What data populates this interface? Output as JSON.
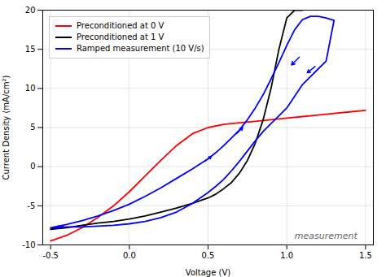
{
  "chart_data": {
    "type": "line",
    "xlabel": "Voltage (V)",
    "ylabel": "Current Density (mA/cm²)",
    "xlim": [
      -0.55,
      1.55
    ],
    "ylim": [
      -10,
      20
    ],
    "xticks": [
      -0.5,
      {
        "value": 0.0,
        "label": "0.0"
      },
      0.5,
      {
        "value": 1.0,
        "label": "1.0"
      },
      1.5
    ],
    "yticks": [
      -10,
      -5,
      0,
      5,
      10,
      15,
      20
    ],
    "grid": true,
    "legend": "upper left",
    "annotations": [
      {
        "text": "measurement",
        "x": 1.05,
        "y": -9.2
      }
    ],
    "series": [
      {
        "name": "Preconditioned at 0 V",
        "color": "red",
        "x": [
          -0.5,
          -0.4,
          -0.3,
          -0.2,
          -0.1,
          0.0,
          0.1,
          0.2,
          0.3,
          0.4,
          0.5,
          0.6,
          0.7,
          0.8,
          0.9,
          1.0,
          1.1,
          1.2,
          1.3,
          1.4,
          1.5
        ],
        "values": [
          -9.5,
          -8.8,
          -7.8,
          -6.5,
          -5.0,
          -3.2,
          -1.2,
          0.8,
          2.7,
          4.2,
          5.0,
          5.4,
          5.6,
          5.8,
          6.0,
          6.2,
          6.4,
          6.6,
          6.8,
          7.0,
          7.2
        ]
      },
      {
        "name": "Preconditioned at 1 V",
        "color": "black",
        "x": [
          -0.5,
          -0.4,
          -0.3,
          -0.2,
          -0.1,
          0.0,
          0.1,
          0.2,
          0.3,
          0.4,
          0.5,
          0.55,
          0.6,
          0.65,
          0.7,
          0.75,
          0.8,
          0.85,
          0.9,
          0.95,
          1.0,
          1.05,
          1.1
        ],
        "values": [
          -8.0,
          -7.8,
          -7.5,
          -7.2,
          -7.0,
          -6.7,
          -6.3,
          -5.8,
          -5.3,
          -4.7,
          -4.0,
          -3.5,
          -2.8,
          -2.0,
          -0.8,
          0.8,
          3.0,
          6.0,
          10.0,
          15.0,
          19.0,
          20.0,
          20.0
        ]
      },
      {
        "name": "Ramped measurement (10 V/s)",
        "color": "blue",
        "x": [
          -0.5,
          -0.45,
          -0.4,
          -0.3,
          -0.2,
          -0.1,
          0.0,
          0.1,
          0.2,
          0.3,
          0.4,
          0.5,
          0.55,
          0.6,
          0.65,
          0.7,
          0.75,
          0.8,
          0.85,
          0.9,
          0.95,
          1.0,
          1.05,
          1.1,
          1.15,
          1.2,
          1.25,
          1.3,
          1.3,
          1.25,
          1.2,
          1.15,
          1.1,
          1.05,
          1.0,
          0.95,
          0.9,
          0.85,
          0.8,
          0.75,
          0.7,
          0.65,
          0.6,
          0.55,
          0.5,
          0.45,
          0.4,
          0.3,
          0.2,
          0.1,
          0.0,
          -0.1,
          -0.2,
          -0.3,
          -0.4,
          -0.45,
          -0.5
        ],
        "values": [
          -7.8,
          -7.6,
          -7.4,
          -6.9,
          -6.3,
          -5.6,
          -4.8,
          -3.8,
          -2.7,
          -1.5,
          -0.3,
          1.0,
          1.8,
          2.7,
          3.7,
          4.7,
          6.0,
          7.5,
          9.2,
          11.2,
          13.3,
          15.5,
          17.5,
          18.8,
          19.2,
          19.2,
          19.0,
          18.7,
          18.7,
          13.5,
          12.5,
          11.5,
          10.5,
          9.0,
          7.5,
          6.5,
          5.5,
          4.5,
          3.3,
          2.0,
          0.7,
          -0.5,
          -1.6,
          -2.5,
          -3.3,
          -4.0,
          -4.7,
          -5.8,
          -6.5,
          -7.0,
          -7.3,
          -7.5,
          -7.6,
          -7.7,
          -7.7,
          -7.8,
          -7.8
        ],
        "arrows": [
          {
            "x1": 0.48,
            "y1": 0.7,
            "x2": 0.52,
            "y2": 1.3
          },
          {
            "x1": 0.68,
            "y1": 4.2,
            "x2": 0.72,
            "y2": 5.0
          },
          {
            "x1": 1.08,
            "y1": 14.0,
            "x2": 1.03,
            "y2": 13.0
          },
          {
            "x1": 1.18,
            "y1": 12.8,
            "x2": 1.13,
            "y2": 12.0
          },
          {
            "x1": -0.42,
            "y1": -7.65,
            "x2": -0.46,
            "y2": -7.75
          }
        ]
      }
    ]
  }
}
